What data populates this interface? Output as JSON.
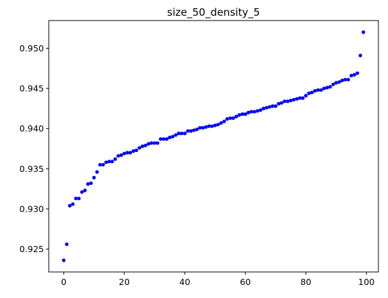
{
  "chart_data": {
    "type": "scatter",
    "title": "size_50_density_5",
    "xlabel": "",
    "ylabel": "",
    "xlim": [
      -4.95,
      103.95
    ],
    "ylim": [
      0.92215,
      0.95345
    ],
    "xticks": [
      0,
      20,
      40,
      60,
      80,
      100
    ],
    "xtick_labels": [
      "0",
      "20",
      "40",
      "60",
      "80",
      "100"
    ],
    "yticks": [
      0.925,
      0.93,
      0.935,
      0.94,
      0.945,
      0.95
    ],
    "ytick_labels": [
      "0.925",
      "0.930",
      "0.935",
      "0.940",
      "0.945",
      "0.950"
    ],
    "grid": false,
    "marker_color": "#0000ff",
    "x": [
      0,
      1,
      2,
      3,
      4,
      5,
      6,
      7,
      8,
      9,
      10,
      11,
      12,
      13,
      14,
      15,
      16,
      17,
      18,
      19,
      20,
      21,
      22,
      23,
      24,
      25,
      26,
      27,
      28,
      29,
      30,
      31,
      32,
      33,
      34,
      35,
      36,
      37,
      38,
      39,
      40,
      41,
      42,
      43,
      44,
      45,
      46,
      47,
      48,
      49,
      50,
      51,
      52,
      53,
      54,
      55,
      56,
      57,
      58,
      59,
      60,
      61,
      62,
      63,
      64,
      65,
      66,
      67,
      68,
      69,
      70,
      71,
      72,
      73,
      74,
      75,
      76,
      77,
      78,
      79,
      80,
      81,
      82,
      83,
      84,
      85,
      86,
      87,
      88,
      89,
      90,
      91,
      92,
      93,
      94,
      95,
      96,
      97,
      98,
      99
    ],
    "y": [
      0.9236,
      0.9256,
      0.9304,
      0.9306,
      0.9313,
      0.9313,
      0.9321,
      0.9323,
      0.9331,
      0.9332,
      0.9339,
      0.9346,
      0.9355,
      0.9355,
      0.9358,
      0.9359,
      0.9359,
      0.9362,
      0.9366,
      0.9367,
      0.9369,
      0.937,
      0.937,
      0.9372,
      0.9373,
      0.9376,
      0.9378,
      0.9379,
      0.9381,
      0.9382,
      0.9382,
      0.9382,
      0.9387,
      0.9387,
      0.9387,
      0.9389,
      0.939,
      0.9392,
      0.9394,
      0.9394,
      0.9394,
      0.9397,
      0.9397,
      0.9398,
      0.9399,
      0.9401,
      0.9401,
      0.9402,
      0.9403,
      0.9403,
      0.9404,
      0.9405,
      0.9407,
      0.9409,
      0.9412,
      0.9413,
      0.9413,
      0.9415,
      0.9417,
      0.9418,
      0.9418,
      0.942,
      0.9421,
      0.9421,
      0.9422,
      0.9423,
      0.9425,
      0.9426,
      0.9427,
      0.9428,
      0.9428,
      0.9431,
      0.9432,
      0.9434,
      0.9434,
      0.9435,
      0.9436,
      0.9437,
      0.9438,
      0.9438,
      0.9441,
      0.9444,
      0.9445,
      0.9447,
      0.9448,
      0.9448,
      0.945,
      0.9451,
      0.9452,
      0.9455,
      0.9457,
      0.9458,
      0.946,
      0.9461,
      0.9461,
      0.9466,
      0.9467,
      0.9469,
      0.9491,
      0.952
    ]
  }
}
